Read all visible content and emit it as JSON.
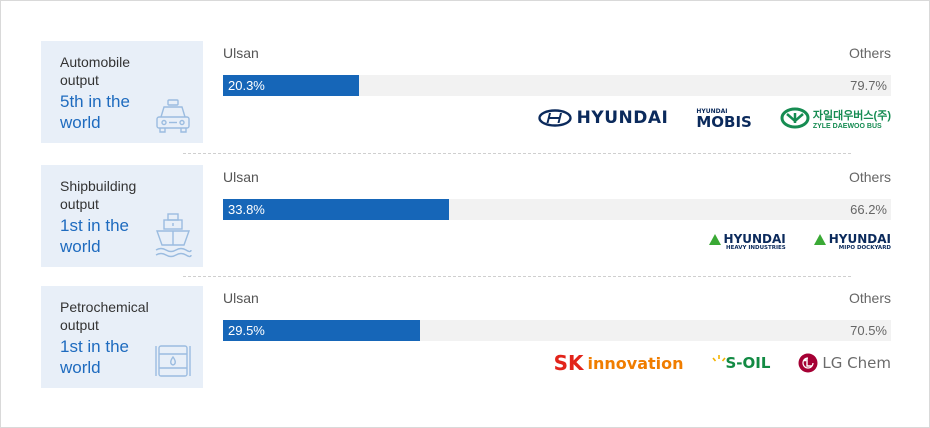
{
  "rows": [
    {
      "metric": "Automobile output",
      "rank": "5th in the world",
      "icon": "car-icon",
      "left_label": "Ulsan",
      "right_label": "Others",
      "ulsan_text": "20.3%",
      "others_text": "79.7%",
      "logos": [
        {
          "name": "hyundai-logo",
          "text": "HYUNDAI"
        },
        {
          "name": "hyundai-mobis-logo",
          "small": "HYUNDAI",
          "text": "MOBIS"
        },
        {
          "name": "zyle-daewoo-bus-logo",
          "text": "자일대우버스(주)",
          "sub": "ZYLE DAEWOO BUS"
        }
      ]
    },
    {
      "metric": "Shipbuilding output",
      "rank": "1st in the world",
      "icon": "ship-icon",
      "left_label": "Ulsan",
      "right_label": "Others",
      "ulsan_text": "33.8%",
      "others_text": "66.2%",
      "logos": [
        {
          "name": "hyundai-heavy-industries-logo",
          "text": "HYUNDAI",
          "sub": "HEAVY INDUSTRIES"
        },
        {
          "name": "hyundai-mipo-dockyard-logo",
          "text": "HYUNDAI",
          "sub": "MIPO DOCKYARD"
        }
      ]
    },
    {
      "metric": "Petrochemical output",
      "rank": "1st in the world",
      "icon": "oil-barrel-icon",
      "left_label": "Ulsan",
      "right_label": "Others",
      "ulsan_text": "29.5%",
      "others_text": "70.5%",
      "logos": [
        {
          "name": "sk-innovation-logo",
          "mark": "SK",
          "text": "innovation"
        },
        {
          "name": "s-oil-logo",
          "text": "S-OIL"
        },
        {
          "name": "lg-chem-logo",
          "text": "LG Chem"
        }
      ]
    }
  ],
  "colors": {
    "bar_fill": "#1666b8",
    "track": "#f2f2f2",
    "label_bg": "#e8eff8",
    "rank_text": "#1e6bbf"
  },
  "chart_data": {
    "type": "bar",
    "orientation": "horizontal-stacked-100",
    "categories": [
      "Automobile output",
      "Shipbuilding output",
      "Petrochemical output"
    ],
    "series": [
      {
        "name": "Ulsan",
        "values": [
          20.3,
          33.8,
          29.5
        ]
      },
      {
        "name": "Others",
        "values": [
          79.7,
          66.2,
          70.5
        ]
      }
    ],
    "unit": "%",
    "xlim": [
      0,
      100
    ],
    "grid": false
  }
}
